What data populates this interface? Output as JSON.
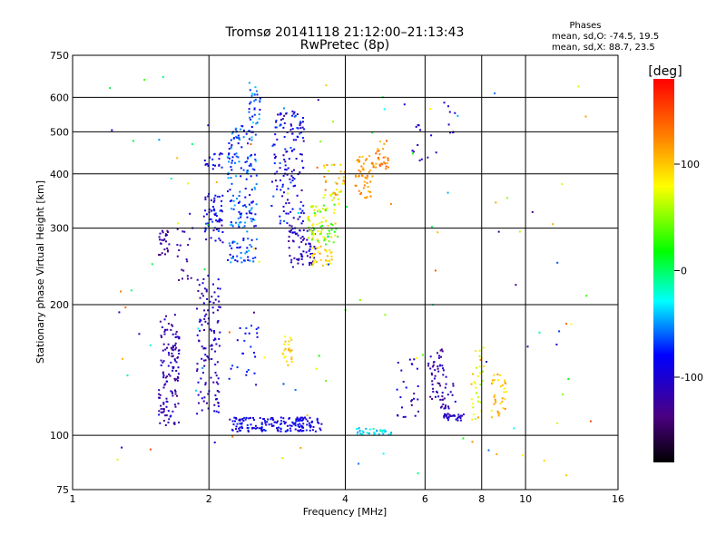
{
  "chart_data": {
    "type": "scatter",
    "title": "Tromsø 20141118 21:12:00–21:13:43",
    "subtitle": "RwPretec (8p)",
    "xlabel": "Frequency [MHz]",
    "ylabel": "Stationary phase Virtual Height [km]",
    "xscale": "log",
    "yscale": "log",
    "xlim": [
      1,
      16
    ],
    "ylim": [
      75,
      750
    ],
    "xticks": [
      1,
      2,
      4,
      6,
      8,
      10,
      16
    ],
    "yticks": [
      75,
      100,
      200,
      300,
      400,
      500,
      600,
      750
    ],
    "grid": true,
    "phase_stats": {
      "title": "Phases",
      "line_o": "mean, sd,O: -74.5, 19.5",
      "line_x": "mean, sd,X:  88.7, 23.5"
    },
    "colorbar": {
      "label": "[deg]",
      "range": [
        -180,
        180
      ],
      "ticks": [
        -100,
        0,
        100
      ],
      "colormap": "rainbow"
    },
    "clusters": [
      {
        "f": [
          1.55,
          1.72
        ],
        "h": [
          105,
          190
        ],
        "phase": [
          -140,
          -95
        ],
        "n": 130
      },
      {
        "f": [
          1.88,
          2.12
        ],
        "h": [
          112,
          235
        ],
        "phase": [
          -130,
          -85
        ],
        "n": 120
      },
      {
        "f": [
          1.55,
          1.65
        ],
        "h": [
          260,
          300
        ],
        "phase": [
          -140,
          -110
        ],
        "n": 25
      },
      {
        "f": [
          1.7,
          1.85
        ],
        "h": [
          210,
          330
        ],
        "phase": [
          -140,
          -100
        ],
        "n": 20
      },
      {
        "f": [
          1.95,
          2.15
        ],
        "h": [
          280,
          360
        ],
        "phase": [
          -120,
          -60
        ],
        "n": 60
      },
      {
        "f": [
          1.95,
          2.15
        ],
        "h": [
          400,
          450
        ],
        "phase": [
          -110,
          -70
        ],
        "n": 20
      },
      {
        "f": [
          2.2,
          2.55
        ],
        "h": [
          250,
          520
        ],
        "phase": [
          -95,
          -40
        ],
        "n": 190
      },
      {
        "f": [
          2.45,
          2.6
        ],
        "h": [
          520,
          650
        ],
        "phase": [
          -90,
          -30
        ],
        "n": 30
      },
      {
        "f": [
          2.2,
          2.6
        ],
        "h": [
          130,
          180
        ],
        "phase": [
          -110,
          -60
        ],
        "n": 25
      },
      {
        "f": [
          2.25,
          3.55
        ],
        "h": [
          102,
          110
        ],
        "phase": [
          -110,
          -70
        ],
        "n": 170
      },
      {
        "f": [
          2.9,
          3.05
        ],
        "h": [
          145,
          170
        ],
        "phase": [
          70,
          110
        ],
        "n": 25
      },
      {
        "f": [
          2.75,
          3.25
        ],
        "h": [
          290,
          560
        ],
        "phase": [
          -120,
          -60
        ],
        "n": 150
      },
      {
        "f": [
          3.0,
          3.45
        ],
        "h": [
          245,
          300
        ],
        "phase": [
          -130,
          -90
        ],
        "n": 60
      },
      {
        "f": [
          3.3,
          3.85
        ],
        "h": [
          275,
          340
        ],
        "phase": [
          10,
          100
        ],
        "n": 80
      },
      {
        "f": [
          3.35,
          3.75
        ],
        "h": [
          245,
          275
        ],
        "phase": [
          70,
          110
        ],
        "n": 30
      },
      {
        "f": [
          3.55,
          4.0
        ],
        "h": [
          340,
          420
        ],
        "phase": [
          60,
          130
        ],
        "n": 40
      },
      {
        "f": [
          4.2,
          4.6
        ],
        "h": [
          350,
          440
        ],
        "phase": [
          100,
          135
        ],
        "n": 50
      },
      {
        "f": [
          4.6,
          5.0
        ],
        "h": [
          410,
          480
        ],
        "phase": [
          100,
          145
        ],
        "n": 30
      },
      {
        "f": [
          4.2,
          5.1
        ],
        "h": [
          100,
          104
        ],
        "phase": [
          -50,
          -10
        ],
        "n": 35
      },
      {
        "f": [
          5.2,
          5.8
        ],
        "h": [
          110,
          150
        ],
        "phase": [
          -130,
          -80
        ],
        "n": 25
      },
      {
        "f": [
          6.1,
          6.6
        ],
        "h": [
          120,
          160
        ],
        "phase": [
          -140,
          -100
        ],
        "n": 45
      },
      {
        "f": [
          6.5,
          7.0
        ],
        "h": [
          110,
          140
        ],
        "phase": [
          -130,
          -100
        ],
        "n": 25
      },
      {
        "f": [
          6.6,
          7.3
        ],
        "h": [
          108,
          112
        ],
        "phase": [
          -120,
          -90
        ],
        "n": 25
      },
      {
        "f": [
          7.6,
          8.1
        ],
        "h": [
          108,
          160
        ],
        "phase": [
          50,
          120
        ],
        "n": 30
      },
      {
        "f": [
          8.4,
          9.1
        ],
        "h": [
          110,
          140
        ],
        "phase": [
          80,
          130
        ],
        "n": 35
      },
      {
        "f": [
          5.6,
          6.4
        ],
        "h": [
          420,
          520
        ],
        "phase": [
          -130,
          -90
        ],
        "n": 12
      },
      {
        "f": [
          6.6,
          7.0
        ],
        "h": [
          490,
          600
        ],
        "phase": [
          -110,
          -80
        ],
        "n": 8
      },
      {
        "f": [
          1.2,
          14
        ],
        "h": [
          80,
          700
        ],
        "phase": [
          -140,
          150
        ],
        "n": 120
      }
    ]
  }
}
